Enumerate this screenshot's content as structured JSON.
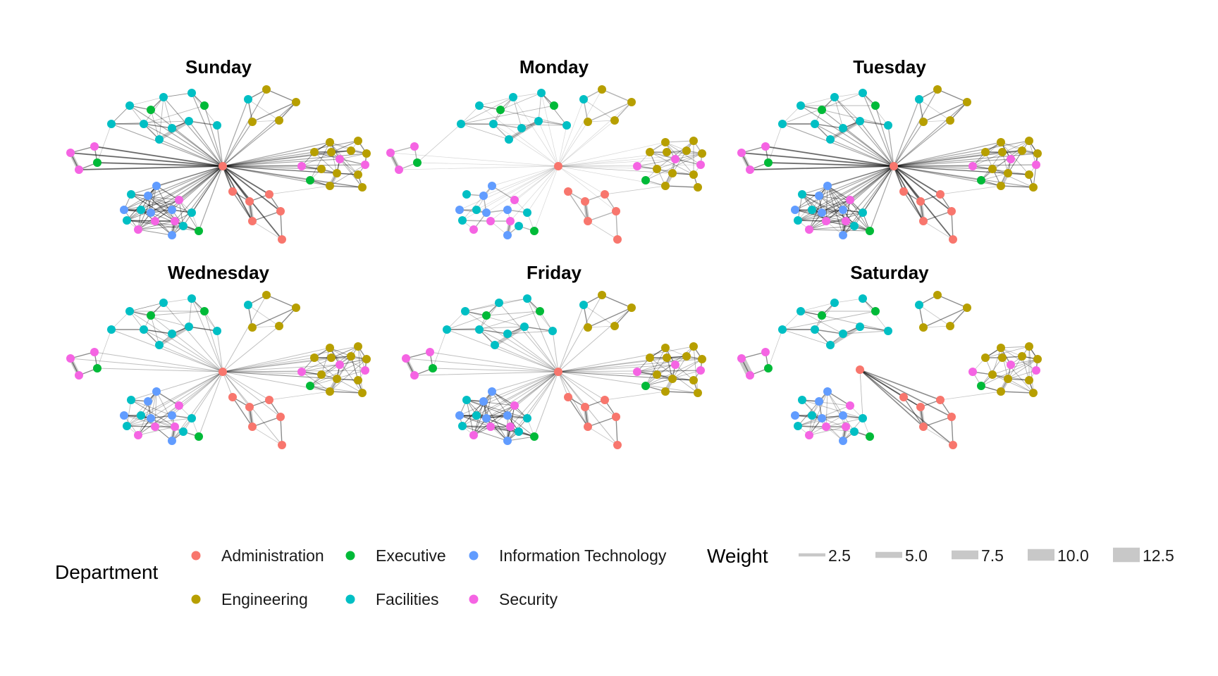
{
  "chart_data": {
    "type": "network",
    "panels": [
      {
        "title": "Sunday"
      },
      {
        "title": "Monday"
      },
      {
        "title": "Tuesday"
      },
      {
        "title": "Wednesday"
      },
      {
        "title": "Friday"
      },
      {
        "title": "Saturday"
      }
    ],
    "legend": {
      "department": {
        "title": "Department",
        "items": [
          {
            "label": "Administration",
            "color": "#F8766D"
          },
          {
            "label": "Executive",
            "color": "#00BA38"
          },
          {
            "label": "Information Technology",
            "color": "#619CFF"
          },
          {
            "label": "Engineering",
            "color": "#B79F00"
          },
          {
            "label": "Facilities",
            "color": "#00BFC4"
          },
          {
            "label": "Security",
            "color": "#F564E3"
          }
        ]
      },
      "weight": {
        "title": "Weight",
        "items": [
          {
            "label": "2.5",
            "value": 2.5
          },
          {
            "label": "5.0",
            "value": 5.0
          },
          {
            "label": "7.5",
            "value": 7.5
          },
          {
            "label": "10.0",
            "value": 10.0
          },
          {
            "label": "12.5",
            "value": 12.5
          }
        ]
      }
    },
    "edge_color": "#000000",
    "legend_edge_color": "#c8c8c8"
  }
}
